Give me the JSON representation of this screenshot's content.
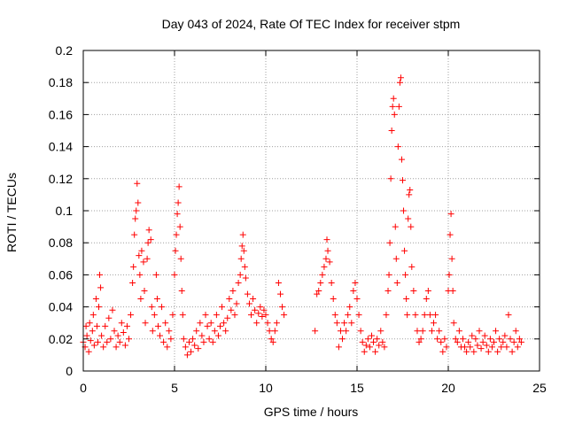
{
  "chart_data": {
    "type": "scatter",
    "title": "Day 043 of 2024, Rate Of TEC Index for receiver stpm",
    "xlabel": "GPS time / hours",
    "ylabel": "ROTI / TECUs",
    "xlim": [
      0,
      25
    ],
    "ylim": [
      0,
      0.2
    ],
    "xticks": [
      0,
      5,
      10,
      15,
      20,
      25
    ],
    "xtick_labels": [
      "0",
      "5",
      "10",
      "15",
      "20",
      "25"
    ],
    "yticks": [
      0,
      0.02,
      0.04,
      0.06,
      0.08,
      0.1,
      0.12,
      0.14,
      0.16,
      0.18,
      0.2
    ],
    "ytick_labels": [
      "0",
      "0.02",
      "0.04",
      "0.06",
      "0.08",
      "0.1",
      "0.12",
      "0.14",
      "0.16",
      "0.18",
      "0.2"
    ],
    "grid": true,
    "marker": "+",
    "color": "#ff0000",
    "series": [
      {
        "name": "ROTI",
        "points": [
          [
            0.0,
            0.018
          ],
          [
            0.1,
            0.015
          ],
          [
            0.15,
            0.028
          ],
          [
            0.2,
            0.022
          ],
          [
            0.3,
            0.012
          ],
          [
            0.35,
            0.03
          ],
          [
            0.4,
            0.019
          ],
          [
            0.5,
            0.025
          ],
          [
            0.55,
            0.035
          ],
          [
            0.6,
            0.016
          ],
          [
            0.7,
            0.045
          ],
          [
            0.75,
            0.028
          ],
          [
            0.8,
            0.018
          ],
          [
            0.85,
            0.04
          ],
          [
            0.9,
            0.06
          ],
          [
            0.95,
            0.052
          ],
          [
            1.0,
            0.022
          ],
          [
            1.1,
            0.015
          ],
          [
            1.2,
            0.028
          ],
          [
            1.3,
            0.018
          ],
          [
            1.4,
            0.033
          ],
          [
            1.5,
            0.02
          ],
          [
            1.6,
            0.038
          ],
          [
            1.7,
            0.025
          ],
          [
            1.8,
            0.015
          ],
          [
            1.9,
            0.022
          ],
          [
            2.0,
            0.018
          ],
          [
            2.1,
            0.03
          ],
          [
            2.2,
            0.024
          ],
          [
            2.3,
            0.016
          ],
          [
            2.4,
            0.028
          ],
          [
            2.5,
            0.02
          ],
          [
            2.6,
            0.035
          ],
          [
            2.7,
            0.055
          ],
          [
            2.75,
            0.065
          ],
          [
            2.8,
            0.085
          ],
          [
            2.85,
            0.095
          ],
          [
            2.9,
            0.1
          ],
          [
            2.95,
            0.117
          ],
          [
            3.0,
            0.105
          ],
          [
            3.05,
            0.072
          ],
          [
            3.1,
            0.06
          ],
          [
            3.15,
            0.045
          ],
          [
            3.2,
            0.075
          ],
          [
            3.3,
            0.068
          ],
          [
            3.35,
            0.05
          ],
          [
            3.4,
            0.03
          ],
          [
            3.5,
            0.07
          ],
          [
            3.55,
            0.08
          ],
          [
            3.6,
            0.088
          ],
          [
            3.7,
            0.082
          ],
          [
            3.75,
            0.04
          ],
          [
            3.8,
            0.025
          ],
          [
            3.9,
            0.035
          ],
          [
            4.0,
            0.06
          ],
          [
            4.05,
            0.045
          ],
          [
            4.1,
            0.028
          ],
          [
            4.2,
            0.022
          ],
          [
            4.3,
            0.04
          ],
          [
            4.4,
            0.018
          ],
          [
            4.5,
            0.03
          ],
          [
            4.6,
            0.015
          ],
          [
            4.7,
            0.025
          ],
          [
            4.8,
            0.02
          ],
          [
            4.9,
            0.035
          ],
          [
            5.0,
            0.06
          ],
          [
            5.05,
            0.075
          ],
          [
            5.1,
            0.085
          ],
          [
            5.15,
            0.098
          ],
          [
            5.2,
            0.105
          ],
          [
            5.25,
            0.115
          ],
          [
            5.3,
            0.09
          ],
          [
            5.35,
            0.07
          ],
          [
            5.4,
            0.05
          ],
          [
            5.45,
            0.035
          ],
          [
            5.5,
            0.02
          ],
          [
            5.6,
            0.015
          ],
          [
            5.7,
            0.01
          ],
          [
            5.8,
            0.018
          ],
          [
            5.9,
            0.012
          ],
          [
            6.0,
            0.02
          ],
          [
            6.1,
            0.016
          ],
          [
            6.2,
            0.025
          ],
          [
            6.3,
            0.014
          ],
          [
            6.4,
            0.03
          ],
          [
            6.5,
            0.022
          ],
          [
            6.6,
            0.018
          ],
          [
            6.7,
            0.035
          ],
          [
            6.8,
            0.028
          ],
          [
            6.9,
            0.02
          ],
          [
            7.0,
            0.03
          ],
          [
            7.1,
            0.018
          ],
          [
            7.2,
            0.025
          ],
          [
            7.3,
            0.035
          ],
          [
            7.4,
            0.022
          ],
          [
            7.5,
            0.028
          ],
          [
            7.6,
            0.04
          ],
          [
            7.7,
            0.03
          ],
          [
            7.8,
            0.025
          ],
          [
            7.9,
            0.033
          ],
          [
            8.0,
            0.045
          ],
          [
            8.1,
            0.038
          ],
          [
            8.2,
            0.05
          ],
          [
            8.3,
            0.035
          ],
          [
            8.4,
            0.042
          ],
          [
            8.5,
            0.055
          ],
          [
            8.6,
            0.06
          ],
          [
            8.65,
            0.07
          ],
          [
            8.7,
            0.078
          ],
          [
            8.75,
            0.085
          ],
          [
            8.8,
            0.075
          ],
          [
            8.85,
            0.065
          ],
          [
            8.9,
            0.058
          ],
          [
            9.0,
            0.048
          ],
          [
            9.1,
            0.042
          ],
          [
            9.2,
            0.035
          ],
          [
            9.3,
            0.045
          ],
          [
            9.4,
            0.038
          ],
          [
            9.5,
            0.03
          ],
          [
            9.6,
            0.036
          ],
          [
            9.7,
            0.04
          ],
          [
            9.8,
            0.034
          ],
          [
            9.9,
            0.038
          ],
          [
            10.0,
            0.035
          ],
          [
            10.1,
            0.03
          ],
          [
            10.2,
            0.025
          ],
          [
            10.3,
            0.02
          ],
          [
            10.4,
            0.018
          ],
          [
            10.5,
            0.025
          ],
          [
            10.6,
            0.03
          ],
          [
            10.7,
            0.055
          ],
          [
            10.8,
            0.048
          ],
          [
            10.9,
            0.04
          ],
          [
            11.0,
            0.035
          ],
          [
            12.7,
            0.025
          ],
          [
            12.8,
            0.048
          ],
          [
            12.9,
            0.05
          ],
          [
            13.0,
            0.055
          ],
          [
            13.1,
            0.06
          ],
          [
            13.2,
            0.065
          ],
          [
            13.3,
            0.07
          ],
          [
            13.35,
            0.082
          ],
          [
            13.4,
            0.075
          ],
          [
            13.5,
            0.068
          ],
          [
            13.6,
            0.055
          ],
          [
            13.7,
            0.045
          ],
          [
            13.8,
            0.035
          ],
          [
            13.9,
            0.03
          ],
          [
            14.0,
            0.015
          ],
          [
            14.1,
            0.025
          ],
          [
            14.2,
            0.02
          ],
          [
            14.3,
            0.03
          ],
          [
            14.4,
            0.025
          ],
          [
            14.5,
            0.035
          ],
          [
            14.6,
            0.04
          ],
          [
            14.7,
            0.03
          ],
          [
            14.8,
            0.05
          ],
          [
            14.9,
            0.055
          ],
          [
            15.0,
            0.045
          ],
          [
            15.1,
            0.035
          ],
          [
            15.2,
            0.025
          ],
          [
            15.3,
            0.018
          ],
          [
            15.4,
            0.012
          ],
          [
            15.5,
            0.016
          ],
          [
            15.6,
            0.02
          ],
          [
            15.7,
            0.015
          ],
          [
            15.8,
            0.022
          ],
          [
            15.9,
            0.018
          ],
          [
            16.0,
            0.012
          ],
          [
            16.1,
            0.02
          ],
          [
            16.2,
            0.016
          ],
          [
            16.3,
            0.025
          ],
          [
            16.4,
            0.018
          ],
          [
            16.5,
            0.015
          ],
          [
            16.6,
            0.035
          ],
          [
            16.7,
            0.05
          ],
          [
            16.75,
            0.06
          ],
          [
            16.8,
            0.08
          ],
          [
            16.85,
            0.12
          ],
          [
            16.9,
            0.15
          ],
          [
            16.95,
            0.165
          ],
          [
            17.0,
            0.17
          ],
          [
            17.05,
            0.16
          ],
          [
            17.1,
            0.09
          ],
          [
            17.15,
            0.07
          ],
          [
            17.2,
            0.055
          ],
          [
            17.25,
            0.14
          ],
          [
            17.3,
            0.165
          ],
          [
            17.35,
            0.18
          ],
          [
            17.4,
            0.183
          ],
          [
            17.45,
            0.132
          ],
          [
            17.5,
            0.119
          ],
          [
            17.55,
            0.1
          ],
          [
            17.6,
            0.075
          ],
          [
            17.65,
            0.06
          ],
          [
            17.7,
            0.045
          ],
          [
            17.75,
            0.035
          ],
          [
            17.8,
            0.095
          ],
          [
            17.85,
            0.11
          ],
          [
            17.9,
            0.113
          ],
          [
            17.95,
            0.09
          ],
          [
            18.0,
            0.065
          ],
          [
            18.1,
            0.05
          ],
          [
            18.2,
            0.035
          ],
          [
            18.3,
            0.025
          ],
          [
            18.4,
            0.018
          ],
          [
            18.5,
            0.02
          ],
          [
            18.6,
            0.025
          ],
          [
            18.7,
            0.035
          ],
          [
            18.8,
            0.045
          ],
          [
            18.9,
            0.05
          ],
          [
            19.0,
            0.035
          ],
          [
            19.1,
            0.025
          ],
          [
            19.2,
            0.03
          ],
          [
            19.3,
            0.035
          ],
          [
            19.4,
            0.02
          ],
          [
            19.5,
            0.025
          ],
          [
            19.6,
            0.018
          ],
          [
            19.7,
            0.012
          ],
          [
            19.8,
            0.02
          ],
          [
            19.9,
            0.015
          ],
          [
            20.0,
            0.05
          ],
          [
            20.05,
            0.06
          ],
          [
            20.1,
            0.085
          ],
          [
            20.15,
            0.098
          ],
          [
            20.2,
            0.07
          ],
          [
            20.25,
            0.05
          ],
          [
            20.3,
            0.03
          ],
          [
            20.4,
            0.02
          ],
          [
            20.5,
            0.018
          ],
          [
            20.6,
            0.025
          ],
          [
            20.7,
            0.015
          ],
          [
            20.8,
            0.02
          ],
          [
            20.9,
            0.015
          ],
          [
            21.0,
            0.012
          ],
          [
            21.1,
            0.018
          ],
          [
            21.2,
            0.015
          ],
          [
            21.3,
            0.022
          ],
          [
            21.4,
            0.012
          ],
          [
            21.5,
            0.02
          ],
          [
            21.6,
            0.016
          ],
          [
            21.7,
            0.025
          ],
          [
            21.8,
            0.014
          ],
          [
            21.9,
            0.018
          ],
          [
            22.0,
            0.022
          ],
          [
            22.1,
            0.016
          ],
          [
            22.2,
            0.012
          ],
          [
            22.3,
            0.02
          ],
          [
            22.4,
            0.015
          ],
          [
            22.5,
            0.018
          ],
          [
            22.6,
            0.025
          ],
          [
            22.7,
            0.012
          ],
          [
            22.8,
            0.02
          ],
          [
            22.9,
            0.015
          ],
          [
            23.0,
            0.018
          ],
          [
            23.1,
            0.022
          ],
          [
            23.2,
            0.015
          ],
          [
            23.3,
            0.035
          ],
          [
            23.4,
            0.02
          ],
          [
            23.5,
            0.012
          ],
          [
            23.6,
            0.018
          ],
          [
            23.7,
            0.025
          ],
          [
            23.8,
            0.015
          ],
          [
            23.9,
            0.02
          ],
          [
            24.0,
            0.018
          ]
        ]
      }
    ]
  }
}
